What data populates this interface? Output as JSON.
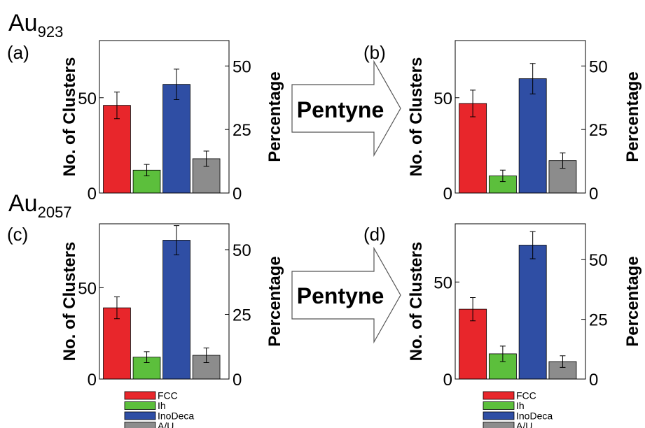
{
  "groups": [
    {
      "title": "Au",
      "subscript": "923"
    },
    {
      "title": "Au",
      "subscript": "2057"
    }
  ],
  "arrow_label": "Pentyne",
  "legend": [
    {
      "label": "FCC",
      "color": "#e8262b"
    },
    {
      "label": "Ih",
      "color": "#5cbf3c"
    },
    {
      "label": "InoDeca",
      "color": "#2f4ea4"
    },
    {
      "label": "A/U",
      "color": "#8c8c8c"
    }
  ],
  "chart_data": [
    {
      "type": "bar",
      "panel_label": "(a)",
      "categories": [
        "FCC",
        "Ih",
        "InoDeca",
        "A/U"
      ],
      "values": [
        46,
        12,
        57,
        18
      ],
      "errors": [
        7,
        3,
        8,
        4
      ],
      "colors": [
        "#e8262b",
        "#5cbf3c",
        "#2f4ea4",
        "#8c8c8c"
      ],
      "ylabel": "No. of Clusters",
      "ylim": [
        0,
        80
      ],
      "yticks": [
        0,
        50
      ],
      "y2label": "Percentage",
      "y2lim": [
        0,
        60
      ],
      "y2ticks": [
        0,
        25,
        50
      ]
    },
    {
      "type": "bar",
      "panel_label": "(b)",
      "categories": [
        "FCC",
        "Ih",
        "InoDeca",
        "A/U"
      ],
      "values": [
        47,
        9,
        60,
        17
      ],
      "errors": [
        7,
        3,
        8,
        4
      ],
      "colors": [
        "#e8262b",
        "#5cbf3c",
        "#2f4ea4",
        "#8c8c8c"
      ],
      "ylabel": "No. of Clusters",
      "ylim": [
        0,
        80
      ],
      "yticks": [
        0,
        50
      ],
      "y2label": "Percentage",
      "y2lim": [
        0,
        60
      ],
      "y2ticks": [
        0,
        25,
        50
      ]
    },
    {
      "type": "bar",
      "panel_label": "(c)",
      "categories": [
        "FCC",
        "Ih",
        "InoDeca",
        "A/U"
      ],
      "values": [
        39,
        12,
        76,
        13
      ],
      "errors": [
        6,
        3,
        8,
        4
      ],
      "colors": [
        "#e8262b",
        "#5cbf3c",
        "#2f4ea4",
        "#8c8c8c"
      ],
      "ylabel": "No. of Clusters",
      "ylim": [
        0,
        85
      ],
      "yticks": [
        0,
        50
      ],
      "y2label": "Percentage",
      "y2lim": [
        0,
        60
      ],
      "y2ticks": [
        0,
        25,
        50
      ]
    },
    {
      "type": "bar",
      "panel_label": "(d)",
      "categories": [
        "FCC",
        "Ih",
        "InoDeca",
        "A/U"
      ],
      "values": [
        36,
        13,
        69,
        9
      ],
      "errors": [
        6,
        4,
        7,
        3
      ],
      "colors": [
        "#e8262b",
        "#5cbf3c",
        "#2f4ea4",
        "#8c8c8c"
      ],
      "ylabel": "No. of Clusters",
      "ylim": [
        0,
        80
      ],
      "yticks": [
        0,
        50
      ],
      "y2label": "Percentage",
      "y2lim": [
        0,
        65
      ],
      "y2ticks": [
        0,
        25,
        50
      ]
    }
  ]
}
